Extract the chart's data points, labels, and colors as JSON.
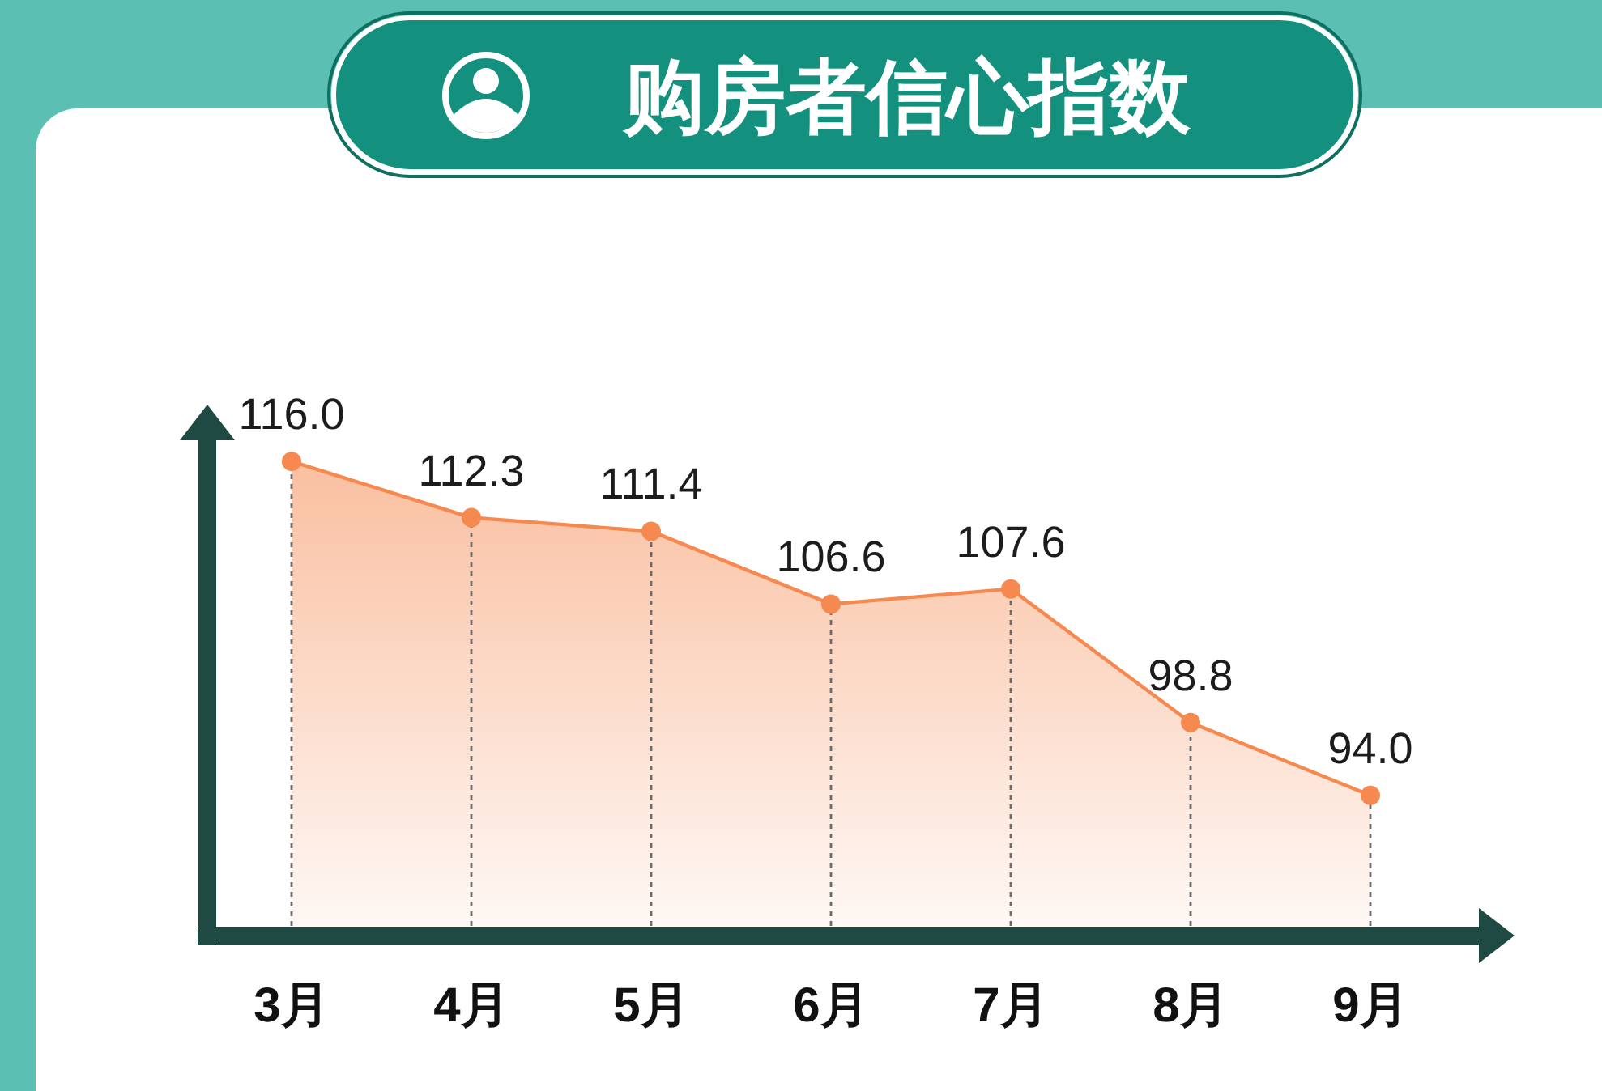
{
  "chart_data": {
    "type": "area",
    "title": "购房者信心指数",
    "categories": [
      "3月",
      "4月",
      "5月",
      "6月",
      "7月",
      "8月",
      "9月"
    ],
    "values": [
      116.0,
      112.3,
      111.4,
      106.6,
      107.6,
      98.8,
      94.0
    ],
    "value_labels": [
      "116.0",
      "112.3",
      "111.4",
      "106.6",
      "107.6",
      "98.8",
      "94.0"
    ],
    "color": "#f5894f",
    "marker": "circle",
    "line_style": "solid",
    "tick_labels": "x"
  }
}
